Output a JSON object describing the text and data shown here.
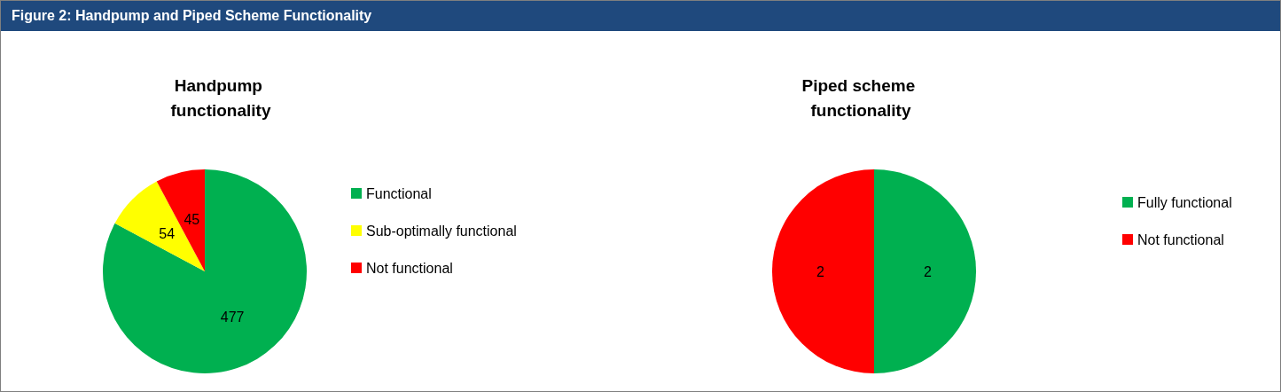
{
  "chart_data": [
    {
      "type": "pie",
      "title": "Handpump functionality",
      "annotations": [
        "Figure 2: Handpump and Piped Scheme Functionality"
      ],
      "categories": [
        "Functional",
        "Sub-optimally functional",
        "Not functional"
      ],
      "values": [
        477,
        54,
        45
      ],
      "colors": [
        "#00b050",
        "#ffff00",
        "#ff0000"
      ],
      "data_labels": true,
      "legend": "right"
    },
    {
      "type": "pie",
      "title": "Piped scheme functionality",
      "categories": [
        "Fully functional",
        "Not functional"
      ],
      "values": [
        2,
        2
      ],
      "colors": [
        "#00b050",
        "#ff0000"
      ],
      "data_labels": true,
      "legend": "right"
    }
  ]
}
